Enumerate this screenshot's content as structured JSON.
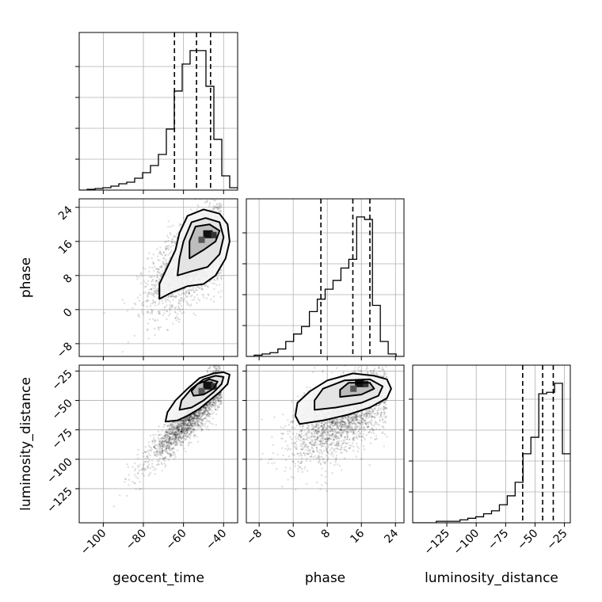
{
  "chart_data": {
    "type": "corner",
    "parameters": [
      "geocent_time",
      "phase",
      "luminosity_distance"
    ],
    "axis_labels": {
      "x": [
        "geocent_time",
        "phase",
        "luminosity_distance"
      ],
      "y": [
        "phase",
        "luminosity_distance"
      ]
    },
    "ranges": {
      "geocent_time": [
        -112,
        -33
      ],
      "phase": [
        -11,
        26
      ],
      "luminosity_distance": [
        -154,
        -20
      ]
    },
    "ticks": {
      "geocent_time": [
        -100,
        -80,
        -60,
        -40
      ],
      "phase": [
        -8,
        0,
        8,
        16,
        24
      ],
      "luminosity_distance": [
        -125,
        -100,
        -75,
        -50,
        -25
      ]
    },
    "tick_labels": {
      "geocent_time": [
        "−100",
        "−80",
        "−60",
        "−40"
      ],
      "phase": [
        "−8",
        "0",
        "8",
        "16",
        "24"
      ],
      "luminosity_distance": [
        "−125",
        "−100",
        "−75",
        "−50",
        "−25"
      ]
    },
    "quantiles": {
      "geocent_time": [
        -64.5,
        -53.5,
        -46.5
      ],
      "phase": [
        6.5,
        14,
        18
      ],
      "luminosity_distance": [
        -60.5,
        -43.5,
        -34.5
      ]
    },
    "histograms": {
      "geocent_time": {
        "edges": [
          -112,
          -108.05,
          -104.1,
          -100.15,
          -96.2,
          -92.25,
          -88.3,
          -84.35,
          -80.4,
          -76.45,
          -72.5,
          -68.55,
          -64.6,
          -60.65,
          -56.7,
          -52.75,
          -48.8,
          -44.85,
          -40.9,
          -36.95,
          -33
        ],
        "counts": [
          0,
          1,
          2,
          3,
          5,
          8,
          10,
          15,
          22,
          31,
          45,
          77,
          125,
          159,
          176,
          176,
          131,
          64,
          18,
          3
        ]
      },
      "phase": {
        "edges": [
          -11,
          -9.15,
          -7.3,
          -5.45,
          -3.6,
          -1.75,
          0.1,
          1.95,
          3.8,
          5.65,
          7.5,
          9.35,
          11.2,
          13.05,
          14.9,
          16.75,
          18.6,
          20.45,
          22.3,
          24.15,
          26
        ],
        "counts": [
          0,
          1,
          2,
          3,
          6,
          12,
          18,
          24,
          36,
          46,
          54,
          61,
          71,
          78,
          112,
          110,
          41,
          12,
          2,
          0
        ]
      },
      "luminosity_distance": {
        "edges": [
          -154,
          -147.3,
          -140.6,
          -133.9,
          -127.2,
          -120.5,
          -113.8,
          -107.1,
          -100.4,
          -93.7,
          -87,
          -80.3,
          -73.6,
          -66.9,
          -60.2,
          -53.5,
          -46.8,
          -40.1,
          -33.4,
          -26.7,
          -20
        ],
        "counts": [
          0,
          0,
          0,
          1,
          1,
          1,
          2,
          3,
          4,
          6,
          8,
          12,
          18,
          27,
          46,
          57,
          86,
          87,
          93,
          46
        ]
      }
    },
    "samples_2d": [
      {
        "x": "geocent_time",
        "y": "phase",
        "n_points": 2400,
        "mean": [
          -55,
          12
        ],
        "std": [
          11,
          6
        ],
        "corr": 0.62,
        "peak": [
          -47,
          17.5
        ]
      },
      {
        "x": "geocent_time",
        "y": "luminosity_distance",
        "n_points": 2400,
        "mean": [
          -55,
          -62
        ],
        "std": [
          11,
          20
        ],
        "corr": 0.92,
        "peak": [
          -47,
          -38
        ]
      },
      {
        "x": "phase",
        "y": "luminosity_distance",
        "n_points": 2400,
        "mean": [
          12,
          -62
        ],
        "std": [
          6,
          20
        ],
        "corr": 0.6,
        "peak": [
          16,
          -36
        ]
      }
    ],
    "contours": [
      {
        "x": "geocent_time",
        "y": "phase",
        "levels": [
          [
            [
              -72,
              2.5
            ],
            [
              -66,
              4
            ],
            [
              -58,
              5.5
            ],
            [
              -50,
              6
            ],
            [
              -44,
              8
            ],
            [
              -39,
              12
            ],
            [
              -37,
              16
            ],
            [
              -38,
              20
            ],
            [
              -42,
              22.5
            ],
            [
              -50,
              23.5
            ],
            [
              -58,
              22
            ],
            [
              -62,
              18
            ],
            [
              -64,
              14
            ],
            [
              -68,
              10
            ],
            [
              -72,
              6
            ]
          ],
          [
            [
              -63,
              8
            ],
            [
              -56,
              9
            ],
            [
              -48,
              10
            ],
            [
              -42,
              13
            ],
            [
              -40,
              17
            ],
            [
              -42,
              20.5
            ],
            [
              -49,
              21.5
            ],
            [
              -56,
              20.5
            ],
            [
              -60,
              16
            ],
            [
              -62,
              12
            ]
          ],
          [
            [
              -57,
              12
            ],
            [
              -50,
              14
            ],
            [
              -44,
              16
            ],
            [
              -42,
              18.5
            ],
            [
              -47,
              20
            ],
            [
              -54,
              19.5
            ],
            [
              -57,
              16
            ]
          ]
        ]
      },
      {
        "x": "geocent_time",
        "y": "luminosity_distance",
        "levels": [
          [
            [
              -69,
              -68
            ],
            [
              -63,
              -67
            ],
            [
              -58,
              -63
            ],
            [
              -52,
              -57
            ],
            [
              -47,
              -50
            ],
            [
              -42,
              -43
            ],
            [
              -38,
              -36
            ],
            [
              -37,
              -28
            ],
            [
              -40,
              -26
            ],
            [
              -45,
              -27
            ],
            [
              -52,
              -31
            ],
            [
              -58,
              -40
            ],
            [
              -64,
              -50
            ],
            [
              -68,
              -60
            ]
          ],
          [
            [
              -62,
              -58
            ],
            [
              -56,
              -56
            ],
            [
              -50,
              -50
            ],
            [
              -45,
              -43
            ],
            [
              -41,
              -36
            ],
            [
              -40,
              -30
            ],
            [
              -44,
              -29
            ],
            [
              -50,
              -32
            ],
            [
              -56,
              -40
            ],
            [
              -61,
              -50
            ]
          ],
          [
            [
              -55,
              -46
            ],
            [
              -50,
              -45
            ],
            [
              -45,
              -40
            ],
            [
              -43,
              -34
            ],
            [
              -47,
              -32
            ],
            [
              -53,
              -36
            ],
            [
              -56,
              -42
            ]
          ]
        ]
      },
      {
        "x": "phase",
        "y": "luminosity_distance",
        "levels": [
          [
            [
              1.5,
              -70
            ],
            [
              7,
              -67
            ],
            [
              13,
              -62
            ],
            [
              18,
              -56
            ],
            [
              22,
              -48
            ],
            [
              23,
              -40
            ],
            [
              22,
              -32
            ],
            [
              19,
              -29
            ],
            [
              14,
              -27
            ],
            [
              8,
              -33
            ],
            [
              4,
              -42
            ],
            [
              1,
              -52
            ],
            [
              0.5,
              -63
            ]
          ],
          [
            [
              5,
              -58
            ],
            [
              10,
              -56
            ],
            [
              16,
              -52
            ],
            [
              20,
              -46
            ],
            [
              21,
              -38
            ],
            [
              18,
              -32
            ],
            [
              12,
              -33
            ],
            [
              7,
              -40
            ],
            [
              5,
              -50
            ]
          ],
          [
            [
              11,
              -47
            ],
            [
              16,
              -45
            ],
            [
              19,
              -40
            ],
            [
              18,
              -35
            ],
            [
              13,
              -35
            ],
            [
              11,
              -41
            ]
          ]
        ]
      }
    ]
  }
}
